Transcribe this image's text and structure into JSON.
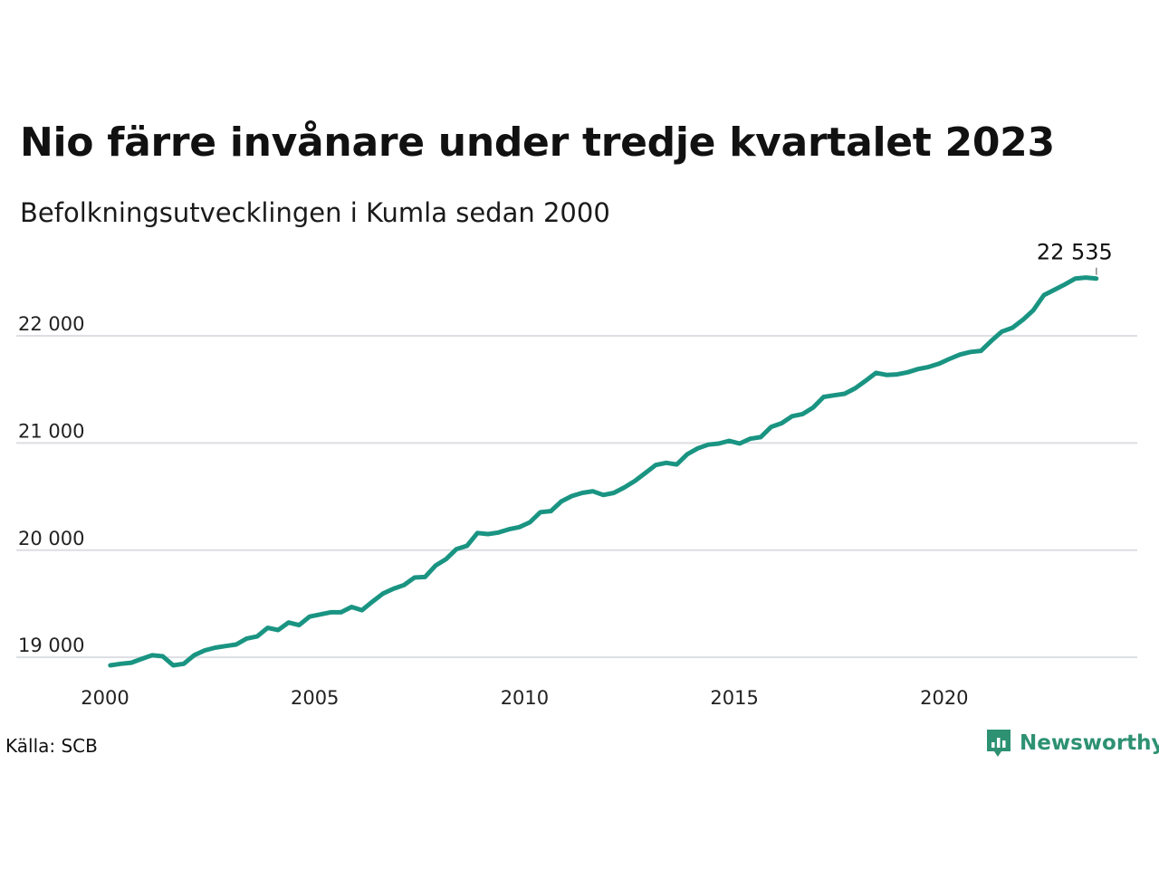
{
  "header": {
    "title": "Nio färre invånare under tredje kvartalet 2023",
    "subtitle": "Befolkningsutvecklingen i Kumla sedan 2000"
  },
  "footer": {
    "source": "Källa: SCB",
    "brand": "Newsworthy",
    "brand_icon": "bar-chart-speech-icon"
  },
  "colors": {
    "line": "#1a9482",
    "grid": "#dcdee3",
    "brand": "#2d9172"
  },
  "chart_data": {
    "type": "line",
    "title": "Nio färre invånare under tredje kvartalet 2023",
    "subtitle": "Befolkningsutvecklingen i Kumla sedan 2000",
    "xlabel": "",
    "ylabel": "",
    "xlim": [
      2000,
      2024.6
    ],
    "ylim": [
      18900,
      22600
    ],
    "x_ticks": [
      2000,
      2005,
      2010,
      2015,
      2020
    ],
    "x_tick_labels": [
      "2000",
      "2005",
      "2010",
      "2015",
      "2020"
    ],
    "y_ticks": [
      19000,
      20000,
      21000,
      22000
    ],
    "y_tick_labels": [
      "19 000",
      "20 000",
      "21 000",
      "22 000"
    ],
    "grid": true,
    "end_label": "22 535",
    "series": [
      {
        "x": [
          2000.125,
          2000.375,
          2000.625,
          2000.875,
          2001.125,
          2001.375,
          2001.625,
          2001.875,
          2002.125,
          2002.375,
          2002.625,
          2002.875,
          2003.125,
          2003.375,
          2003.625,
          2003.875,
          2004.125,
          2004.375,
          2004.625,
          2004.875,
          2005.125,
          2005.375,
          2005.625,
          2005.875,
          2006.125,
          2006.375,
          2006.625,
          2006.875,
          2007.125,
          2007.375,
          2007.625,
          2007.875,
          2008.125,
          2008.375,
          2008.625,
          2008.875,
          2009.125,
          2009.375,
          2009.625,
          2009.875,
          2010.125,
          2010.375,
          2010.625,
          2010.875,
          2011.125,
          2011.375,
          2011.625,
          2011.875,
          2012.125,
          2012.375,
          2012.625,
          2012.875,
          2013.125,
          2013.375,
          2013.625,
          2013.875,
          2014.125,
          2014.375,
          2014.625,
          2014.875,
          2015.125,
          2015.375,
          2015.625,
          2015.875,
          2016.125,
          2016.375,
          2016.625,
          2016.875,
          2017.125,
          2017.375,
          2017.625,
          2017.875,
          2018.125,
          2018.375,
          2018.625,
          2018.875,
          2019.125,
          2019.375,
          2019.625,
          2019.875,
          2020.125,
          2020.375,
          2020.625,
          2020.875,
          2021.125,
          2021.375,
          2021.625,
          2021.875,
          2022.125,
          2022.375,
          2022.625,
          2022.875,
          2023.125,
          2023.375,
          2023.625
        ],
        "values": [
          18925,
          18940,
          18950,
          18985,
          19020,
          19010,
          18925,
          18940,
          19020,
          19065,
          19090,
          19105,
          19120,
          19175,
          19195,
          19275,
          19255,
          19325,
          19300,
          19380,
          19400,
          19420,
          19420,
          19470,
          19440,
          19520,
          19595,
          19640,
          19675,
          19745,
          19750,
          19855,
          19915,
          20010,
          20040,
          20160,
          20150,
          20165,
          20195,
          20215,
          20260,
          20355,
          20365,
          20455,
          20505,
          20535,
          20550,
          20515,
          20535,
          20585,
          20645,
          20720,
          20795,
          20815,
          20800,
          20895,
          20950,
          20985,
          20995,
          21020,
          20995,
          21040,
          21055,
          21150,
          21185,
          21250,
          21270,
          21330,
          21430,
          21445,
          21460,
          21510,
          21580,
          21655,
          21635,
          21640,
          21660,
          21690,
          21710,
          21740,
          21785,
          21825,
          21850,
          21860,
          21955,
          22040,
          22075,
          22150,
          22240,
          22380,
          22430,
          22480,
          22535,
          22544,
          22535
        ]
      }
    ]
  }
}
